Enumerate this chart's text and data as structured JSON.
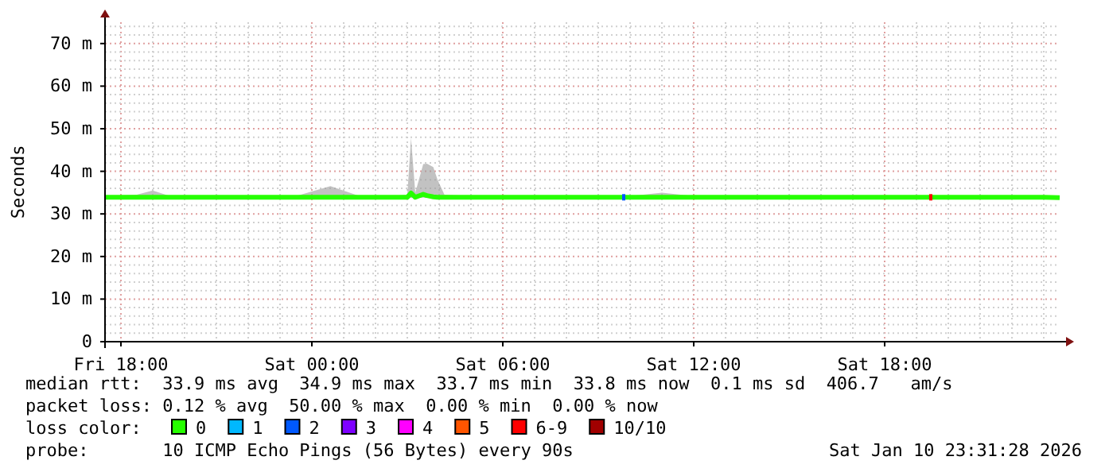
{
  "chart_data": {
    "type": "line",
    "ylabel": "Seconds",
    "legend_title": "loss color:",
    "legend": "bottom",
    "grid": true,
    "xlim": [
      "2026-01-09T17:30",
      "2026-01-10T23:30"
    ],
    "xticks": [
      {
        "value": "2026-01-09T18:00",
        "label": "Fri 18:00"
      },
      {
        "value": "2026-01-09T19:00",
        "label": null
      },
      {
        "value": "2026-01-09T20:00",
        "label": null
      },
      {
        "value": "2026-01-09T21:00",
        "label": null
      },
      {
        "value": "2026-01-09T22:00",
        "label": null
      },
      {
        "value": "2026-01-09T23:00",
        "label": null
      },
      {
        "value": "2026-01-10T00:00",
        "label": "Sat 00:00"
      },
      {
        "value": "2026-01-10T01:00",
        "label": null
      },
      {
        "value": "2026-01-10T02:00",
        "label": null
      },
      {
        "value": "2026-01-10T03:00",
        "label": null
      },
      {
        "value": "2026-01-10T04:00",
        "label": null
      },
      {
        "value": "2026-01-10T05:00",
        "label": null
      },
      {
        "value": "2026-01-10T06:00",
        "label": "Sat 06:00"
      },
      {
        "value": "2026-01-10T07:00",
        "label": null
      },
      {
        "value": "2026-01-10T08:00",
        "label": null
      },
      {
        "value": "2026-01-10T09:00",
        "label": null
      },
      {
        "value": "2026-01-10T10:00",
        "label": null
      },
      {
        "value": "2026-01-10T11:00",
        "label": null
      },
      {
        "value": "2026-01-10T12:00",
        "label": "Sat 12:00"
      },
      {
        "value": "2026-01-10T13:00",
        "label": null
      },
      {
        "value": "2026-01-10T14:00",
        "label": null
      },
      {
        "value": "2026-01-10T15:00",
        "label": null
      },
      {
        "value": "2026-01-10T16:00",
        "label": null
      },
      {
        "value": "2026-01-10T17:00",
        "label": null
      },
      {
        "value": "2026-01-10T18:00",
        "label": "Sat 18:00"
      },
      {
        "value": "2026-01-10T19:00",
        "label": null
      },
      {
        "value": "2026-01-10T20:00",
        "label": null
      },
      {
        "value": "2026-01-10T21:00",
        "label": null
      },
      {
        "value": "2026-01-10T22:00",
        "label": null
      },
      {
        "value": "2026-01-10T23:00",
        "label": null
      }
    ],
    "ylim": [
      0,
      75
    ],
    "yticks": [
      0,
      {
        "value": 2,
        "label": null
      },
      {
        "value": 4,
        "label": null
      },
      {
        "value": 6,
        "label": null
      },
      {
        "value": 8,
        "label": null
      },
      {
        "value": 10,
        "label": "10 m"
      },
      {
        "value": 12,
        "label": null
      },
      {
        "value": 14,
        "label": null
      },
      {
        "value": 16,
        "label": null
      },
      {
        "value": 18,
        "label": null
      },
      {
        "value": 20,
        "label": "20 m"
      },
      {
        "value": 22,
        "label": null
      },
      {
        "value": 24,
        "label": null
      },
      {
        "value": 26,
        "label": null
      },
      {
        "value": 28,
        "label": null
      },
      {
        "value": 30,
        "label": "30 m"
      },
      {
        "value": 32,
        "label": null
      },
      {
        "value": 34,
        "label": null
      },
      {
        "value": 36,
        "label": null
      },
      {
        "value": 38,
        "label": null
      },
      {
        "value": 40,
        "label": "40 m"
      },
      {
        "value": 42,
        "label": null
      },
      {
        "value": 44,
        "label": null
      },
      {
        "value": 46,
        "label": null
      },
      {
        "value": 48,
        "label": null
      },
      {
        "value": 50,
        "label": "50 m"
      },
      {
        "value": 52,
        "label": null
      },
      {
        "value": 54,
        "label": null
      },
      {
        "value": 56,
        "label": null
      },
      {
        "value": 58,
        "label": null
      },
      {
        "value": 60,
        "label": "60 m"
      },
      {
        "value": 62,
        "label": null
      },
      {
        "value": 64,
        "label": null
      },
      {
        "value": 66,
        "label": null
      },
      {
        "value": 68,
        "label": null
      },
      {
        "value": 70,
        "label": "70 m"
      },
      {
        "value": 72,
        "label": null
      },
      {
        "value": 74,
        "label": null
      }
    ],
    "series": [
      {
        "name": "0",
        "color": "#26ff00",
        "x": [
          "2026-01-09T17:30",
          "2026-01-09T18:30",
          "2026-01-09T19:00",
          "2026-01-09T19:30",
          "2026-01-09T20:30",
          "2026-01-09T21:30",
          "2026-01-09T22:30",
          "2026-01-09T23:30",
          "2026-01-10T00:35",
          "2026-01-10T01:30",
          "2026-01-10T02:30",
          "2026-01-10T03:00",
          "2026-01-10T03:07",
          "2026-01-10T03:15",
          "2026-01-10T03:30",
          "2026-01-10T03:37",
          "2026-01-10T03:49",
          "2026-01-10T03:57",
          "2026-01-10T04:10",
          "2026-01-10T05:00",
          "2026-01-10T06:00",
          "2026-01-10T07:00",
          "2026-01-10T08:00",
          "2026-01-10T09:00",
          "2026-01-10T10:00",
          "2026-01-10T11:00",
          "2026-01-10T12:00",
          "2026-01-10T13:00",
          "2026-01-10T14:00",
          "2026-01-10T15:00",
          "2026-01-10T16:00",
          "2026-01-10T17:00",
          "2026-01-10T18:00",
          "2026-01-10T19:00",
          "2026-01-10T20:00",
          "2026-01-10T21:00",
          "2026-01-10T22:00",
          "2026-01-10T23:00",
          "2026-01-10T23:30"
        ],
        "values": [
          33.9,
          33.9,
          33.9,
          33.9,
          33.9,
          33.9,
          33.9,
          33.9,
          33.9,
          33.9,
          33.9,
          33.9,
          34.9,
          33.9,
          34.6,
          34.3,
          34.0,
          33.9,
          33.9,
          33.9,
          33.9,
          33.9,
          33.9,
          33.9,
          33.9,
          33.9,
          33.9,
          33.9,
          33.9,
          33.9,
          33.9,
          33.9,
          33.9,
          33.9,
          33.9,
          33.9,
          33.9,
          33.9,
          33.8
        ],
        "lower": [
          33.7,
          33.7,
          33.7,
          33.7,
          33.7,
          33.7,
          33.7,
          33.7,
          33.7,
          33.7,
          33.7,
          33.7,
          33.8,
          33.7,
          33.8,
          33.8,
          33.7,
          33.7,
          33.7,
          33.7,
          33.7,
          33.7,
          33.7,
          33.7,
          33.7,
          33.7,
          33.7,
          33.7,
          33.7,
          33.7,
          33.7,
          33.7,
          33.7,
          33.7,
          33.7,
          33.7,
          33.7,
          33.7,
          33.7
        ],
        "upper": [
          34.2,
          34.5,
          35.5,
          34.3,
          34.2,
          34.2,
          34.2,
          34.2,
          36.5,
          34.2,
          34.2,
          34.5,
          47.8,
          35.0,
          41.7,
          41.8,
          41.0,
          38.0,
          34.5,
          34.2,
          34.2,
          34.2,
          34.2,
          34.2,
          34.2,
          35.0,
          34.2,
          34.2,
          34.2,
          34.2,
          34.2,
          34.2,
          34.2,
          34.2,
          34.2,
          34.2,
          34.2,
          34.2,
          34.2
        ]
      },
      {
        "name": "1",
        "color": "#00b8ff",
        "type": "scatter"
      },
      {
        "name": "2",
        "color": "#0059ff",
        "type": "scatter",
        "marker": "square",
        "x": [
          "2026-01-10T09:48"
        ],
        "values": [
          33.9
        ]
      },
      {
        "name": "3",
        "color": "#7e00ff",
        "type": "scatter"
      },
      {
        "name": "4",
        "color": "#ff00ff",
        "type": "scatter"
      },
      {
        "name": "5",
        "color": "#ff5500",
        "type": "scatter"
      },
      {
        "name": "6-9",
        "color": "#ff0000",
        "type": "scatter",
        "marker": "square",
        "x": [
          "2026-01-10T19:27"
        ],
        "values": [
          33.9
        ]
      },
      {
        "name": "10/10",
        "color": "#a10000",
        "type": "scatter"
      }
    ],
    "annotations": [
      "median rtt:  33.9 ms avg  34.9 ms max  33.7 ms min  33.8 ms now  0.1 ms sd  406.7   am/s",
      "packet loss: 0.12 % avg  50.00 % max  0.00 % min  0.00 % now",
      "probe:       10 ICMP Echo Pings (56 Bytes) every 90s",
      "Sat Jan 10 23:31:28 2026"
    ]
  }
}
